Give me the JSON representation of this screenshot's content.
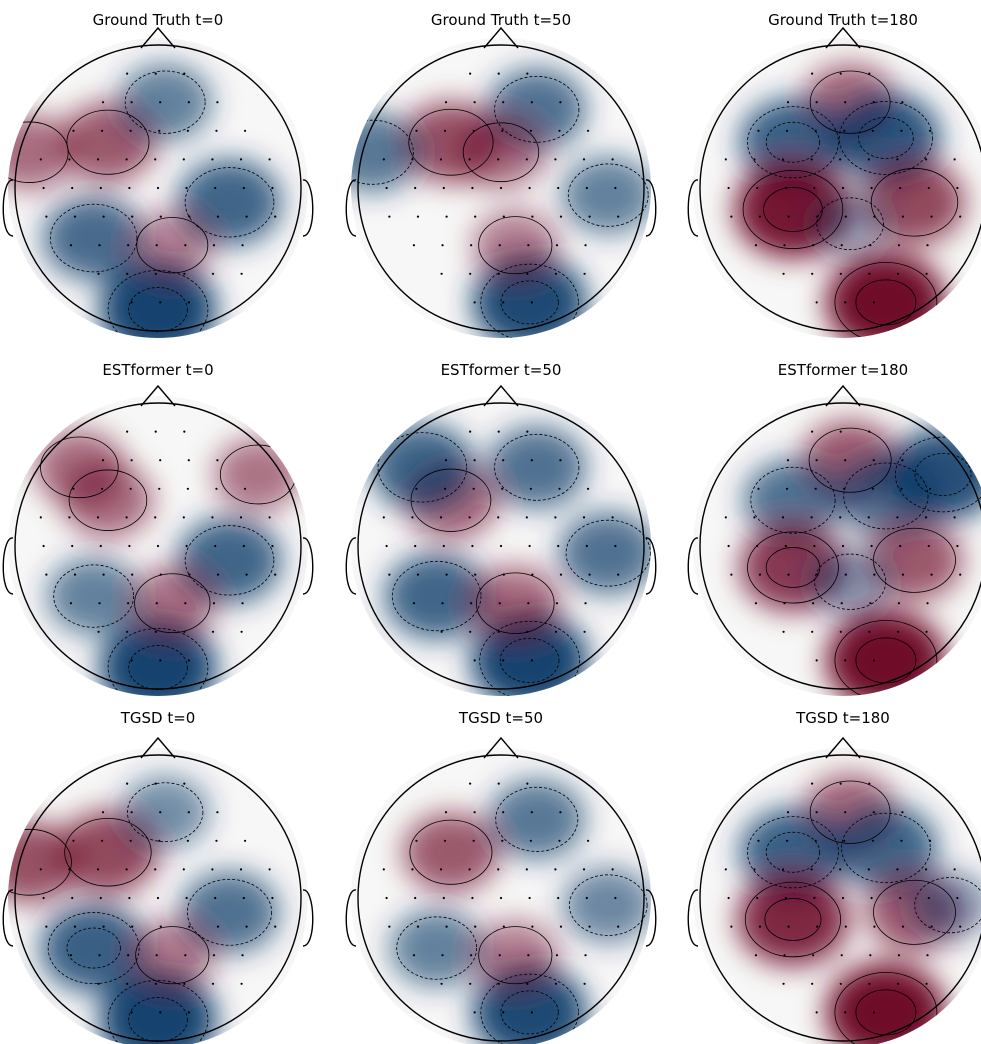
{
  "figure": {
    "panels": [
      {
        "title": "Ground Truth t=0"
      },
      {
        "title": "Ground Truth t=50"
      },
      {
        "title": "Ground Truth t=180"
      },
      {
        "title": "ESTformer t=0"
      },
      {
        "title": "ESTformer t=50"
      },
      {
        "title": "ESTformer t=180"
      },
      {
        "title": "TGSD t=0"
      },
      {
        "title": "TGSD t=50"
      },
      {
        "title": "TGSD t=180"
      }
    ]
  },
  "chart_data": {
    "type": "heatmap",
    "subtype": "eeg-topomap-grid",
    "rows": [
      "Ground Truth",
      "ESTformer",
      "TGSD"
    ],
    "columns": [
      "t=0",
      "t=50",
      "t=180"
    ],
    "colormap": "RdBu_r",
    "colors": {
      "positive": "#67001f",
      "neutral": "#f7f7f7",
      "negative": "#053061"
    },
    "contours": "solid lines for positive levels, dashed lines for negative levels",
    "sensor_markers": "small black dots",
    "panels": [
      {
        "method": "Ground Truth",
        "t": 0,
        "blobs": [
          {
            "region": "left-frontal",
            "polarity": 1,
            "strength": 0.55
          },
          {
            "region": "left-temporal",
            "polarity": 1,
            "strength": 0.45
          },
          {
            "region": "frontal-midline",
            "polarity": -1,
            "strength": 0.5
          },
          {
            "region": "right-central",
            "polarity": -1,
            "strength": 0.7
          },
          {
            "region": "occipital",
            "polarity": -1,
            "strength": 0.95
          },
          {
            "region": "left-parietal",
            "polarity": -1,
            "strength": 0.65
          },
          {
            "region": "central-parietal",
            "polarity": 1,
            "strength": 0.3
          }
        ]
      },
      {
        "method": "Ground Truth",
        "t": 50,
        "blobs": [
          {
            "region": "left-frontal",
            "polarity": 1,
            "strength": 0.6
          },
          {
            "region": "frontal-midline-right",
            "polarity": -1,
            "strength": 0.6
          },
          {
            "region": "left-temporal",
            "polarity": -1,
            "strength": 0.55
          },
          {
            "region": "right-temporal",
            "polarity": -1,
            "strength": 0.5
          },
          {
            "region": "occipital-midline",
            "polarity": -1,
            "strength": 0.9
          },
          {
            "region": "central-parietal",
            "polarity": 1,
            "strength": 0.35
          },
          {
            "region": "frontal-center",
            "polarity": 1,
            "strength": 0.4
          }
        ]
      },
      {
        "method": "Ground Truth",
        "t": 180,
        "blobs": [
          {
            "region": "frontal-midline",
            "polarity": 1,
            "strength": 0.5
          },
          {
            "region": "left-frontal",
            "polarity": -1,
            "strength": 0.75
          },
          {
            "region": "right-frontal",
            "polarity": -1,
            "strength": 0.8
          },
          {
            "region": "left-central",
            "polarity": 1,
            "strength": 0.95
          },
          {
            "region": "right-central",
            "polarity": 1,
            "strength": 0.65
          },
          {
            "region": "occipital-right",
            "polarity": 1,
            "strength": 1.0
          },
          {
            "region": "center",
            "polarity": -1,
            "strength": 0.2
          }
        ]
      },
      {
        "method": "ESTformer",
        "t": 0,
        "blobs": [
          {
            "region": "left-frontal-edge",
            "polarity": 1,
            "strength": 0.45
          },
          {
            "region": "left-frontal",
            "polarity": 1,
            "strength": 0.45
          },
          {
            "region": "right-frontal-edge",
            "polarity": 1,
            "strength": 0.4
          },
          {
            "region": "right-central",
            "polarity": -1,
            "strength": 0.7
          },
          {
            "region": "occipital",
            "polarity": -1,
            "strength": 0.95
          },
          {
            "region": "central-parietal",
            "polarity": 1,
            "strength": 0.4
          },
          {
            "region": "left-parietal",
            "polarity": -1,
            "strength": 0.5
          }
        ]
      },
      {
        "method": "ESTformer",
        "t": 50,
        "blobs": [
          {
            "region": "left-frontal",
            "polarity": 1,
            "strength": 0.5
          },
          {
            "region": "frontal-midline-right",
            "polarity": -1,
            "strength": 0.6
          },
          {
            "region": "left-frontal-edge",
            "polarity": -1,
            "strength": 0.7
          },
          {
            "region": "right-temporal",
            "polarity": -1,
            "strength": 0.6
          },
          {
            "region": "left-parietal",
            "polarity": -1,
            "strength": 0.7
          },
          {
            "region": "occipital-midline",
            "polarity": -1,
            "strength": 0.95
          },
          {
            "region": "central-parietal",
            "polarity": 1,
            "strength": 0.45
          }
        ]
      },
      {
        "method": "ESTformer",
        "t": 180,
        "blobs": [
          {
            "region": "frontal-midline",
            "polarity": 1,
            "strength": 0.55
          },
          {
            "region": "left-frontal",
            "polarity": -1,
            "strength": 0.6
          },
          {
            "region": "right-frontal",
            "polarity": -1,
            "strength": 0.6
          },
          {
            "region": "right-frontal-edge",
            "polarity": -1,
            "strength": 0.85
          },
          {
            "region": "left-central",
            "polarity": 1,
            "strength": 0.75
          },
          {
            "region": "right-central",
            "polarity": 1,
            "strength": 0.55
          },
          {
            "region": "occipital-right",
            "polarity": 1,
            "strength": 1.0
          },
          {
            "region": "center",
            "polarity": -1,
            "strength": 0.3
          }
        ]
      },
      {
        "method": "TGSD",
        "t": 0,
        "blobs": [
          {
            "region": "left-frontal",
            "polarity": 1,
            "strength": 0.65
          },
          {
            "region": "left-temporal",
            "polarity": 1,
            "strength": 0.6
          },
          {
            "region": "right-central",
            "polarity": -1,
            "strength": 0.6
          },
          {
            "region": "occipital",
            "polarity": -1,
            "strength": 0.95
          },
          {
            "region": "left-parietal",
            "polarity": -1,
            "strength": 0.75
          },
          {
            "region": "central-parietal",
            "polarity": 1,
            "strength": 0.35
          },
          {
            "region": "frontal-midline",
            "polarity": -1,
            "strength": 0.4
          }
        ]
      },
      {
        "method": "TGSD",
        "t": 50,
        "blobs": [
          {
            "region": "left-frontal",
            "polarity": 1,
            "strength": 0.55
          },
          {
            "region": "frontal-midline-right",
            "polarity": -1,
            "strength": 0.55
          },
          {
            "region": "right-temporal",
            "polarity": -1,
            "strength": 0.45
          },
          {
            "region": "occipital-midline",
            "polarity": -1,
            "strength": 0.9
          },
          {
            "region": "left-parietal",
            "polarity": -1,
            "strength": 0.5
          },
          {
            "region": "central-parietal",
            "polarity": 1,
            "strength": 0.35
          }
        ]
      },
      {
        "method": "TGSD",
        "t": 180,
        "blobs": [
          {
            "region": "frontal-midline",
            "polarity": 1,
            "strength": 0.5
          },
          {
            "region": "left-frontal",
            "polarity": -1,
            "strength": 0.75
          },
          {
            "region": "right-frontal",
            "polarity": -1,
            "strength": 0.7
          },
          {
            "region": "left-central",
            "polarity": 1,
            "strength": 0.85
          },
          {
            "region": "right-central",
            "polarity": 1,
            "strength": 0.55
          },
          {
            "region": "occipital-right",
            "polarity": 1,
            "strength": 1.0
          },
          {
            "region": "right-temporal",
            "polarity": -1,
            "strength": 0.3
          }
        ]
      }
    ]
  }
}
